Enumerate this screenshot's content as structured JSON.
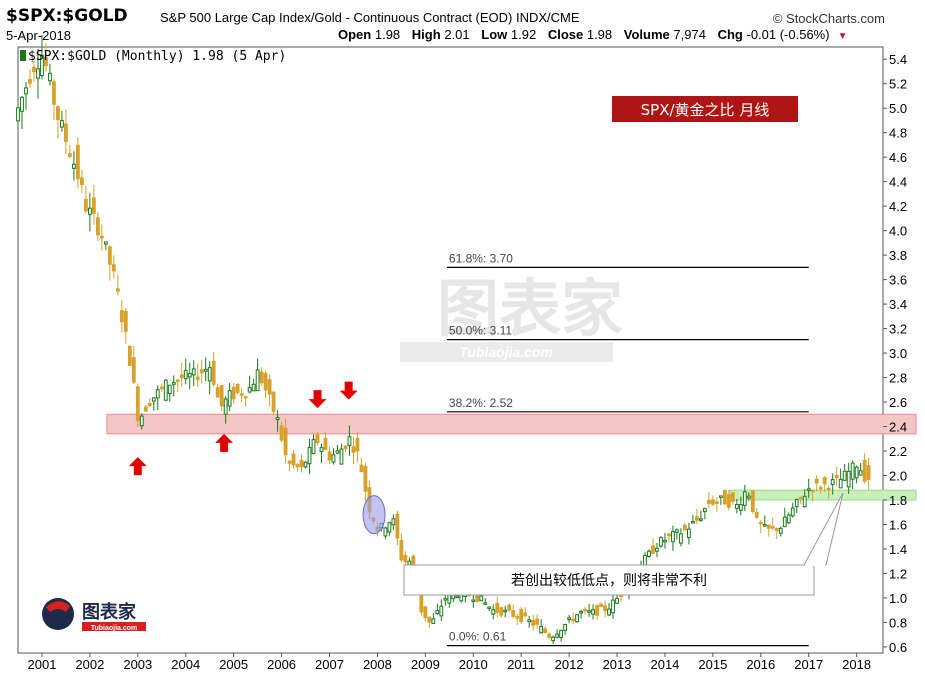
{
  "header": {
    "symbol": "$SPX:$GOLD",
    "description": "S&P 500 Large Cap Index/Gold - Continuous Contract (EOD)  INDX/CME",
    "brand": "© StockCharts.com",
    "date": "5-Apr-2018",
    "open_label": "Open",
    "open": "1.98",
    "high_label": "High",
    "high": "2.01",
    "low_label": "Low",
    "low": "1.92",
    "close_label": "Close",
    "close": "1.98",
    "volume_label": "Volume",
    "volume": "7,974",
    "chg_label": "Chg",
    "chg": "-0.01 (-0.56%)"
  },
  "colors": {
    "up": "#1a7a1a",
    "down": "#d7a12a",
    "band": "#f4c6c6",
    "band_border": "#e88",
    "support": "#c9f0b8",
    "title_bg": "#b01515",
    "arrow": "#e00000",
    "ellipse": "#9b9be8"
  },
  "chart_data": {
    "type": "candlestick",
    "legend": "$SPX:$GOLD (Monthly) 1.98 (5 Apr)",
    "title_box": "SPX/黄金之比  月线",
    "annotation": "若创出较低低点，则将非常不利",
    "watermark": "图表家",
    "watermark_sub": "Tubiaojia.com",
    "logo_text": "图表家",
    "logo_sub": "Tubiaojia.com",
    "ylim": [
      0.55,
      5.5
    ],
    "y_ticks": [
      0.6,
      0.8,
      1.0,
      1.2,
      1.4,
      1.6,
      1.8,
      2.0,
      2.2,
      2.4,
      2.6,
      2.8,
      3.0,
      3.2,
      3.4,
      3.6,
      3.8,
      4.0,
      4.2,
      4.4,
      4.6,
      4.8,
      5.0,
      5.2,
      5.4
    ],
    "y_tick_labels": [
      "0.6",
      "0.8",
      "1.0",
      "1.2",
      "1.4",
      "1.6",
      "1.8",
      "2.0",
      "2.2",
      "2.4",
      "2.6",
      "2.8",
      "3.0",
      "3.2",
      "3.4",
      "3.6",
      "3.8",
      "4.0",
      "4.2",
      "4.4",
      "4.6",
      "4.8",
      "5.0",
      "5.2",
      "5.4"
    ],
    "x_ticks": [
      2001,
      2002,
      2003,
      2004,
      2005,
      2006,
      2007,
      2008,
      2009,
      2010,
      2011,
      2012,
      2013,
      2014,
      2015,
      2016,
      2017,
      2018
    ],
    "xlim": [
      2000.5,
      2018.55
    ],
    "fib_levels": [
      {
        "label": "61.8%: 3.70",
        "value": 3.7
      },
      {
        "label": "50.0%: 3.11",
        "value": 3.11
      },
      {
        "label": "38.2%: 2.52",
        "value": 2.52
      },
      {
        "label": "0.0%: 0.61",
        "value": 0.61
      }
    ],
    "fib_x_start": 2009.45,
    "fib_x_end": 2017.0,
    "resistance_band": [
      2.34,
      2.5
    ],
    "support_band": [
      1.8,
      1.88
    ],
    "support_x_start": 2015.35,
    "arrows": [
      {
        "date": 2003.0,
        "value": 2.15,
        "direction": "up"
      },
      {
        "date": 2004.8,
        "value": 2.34,
        "direction": "up"
      },
      {
        "date": 2006.75,
        "value": 2.55,
        "direction": "down"
      },
      {
        "date": 2007.4,
        "value": 2.62,
        "direction": "down"
      }
    ],
    "ellipse": {
      "date": 2007.93,
      "value": 1.68
    },
    "anchors": [
      [
        2000.5,
        4.9
      ],
      [
        2000.9,
        5.35
      ],
      [
        2001.1,
        5.45
      ],
      [
        2001.4,
        4.95
      ],
      [
        2001.8,
        4.5
      ],
      [
        2002.0,
        4.2
      ],
      [
        2002.3,
        4.0
      ],
      [
        2002.6,
        3.6
      ],
      [
        2002.9,
        3.0
      ],
      [
        2003.1,
        2.45
      ],
      [
        2003.3,
        2.6
      ],
      [
        2003.7,
        2.75
      ],
      [
        2004.0,
        2.8
      ],
      [
        2004.3,
        2.82
      ],
      [
        2004.6,
        2.9
      ],
      [
        2004.8,
        2.55
      ],
      [
        2005.0,
        2.65
      ],
      [
        2005.4,
        2.7
      ],
      [
        2005.6,
        2.85
      ],
      [
        2005.8,
        2.65
      ],
      [
        2006.0,
        2.45
      ],
      [
        2006.2,
        2.1
      ],
      [
        2006.5,
        2.05
      ],
      [
        2006.8,
        2.3
      ],
      [
        2007.1,
        2.15
      ],
      [
        2007.3,
        2.2
      ],
      [
        2007.5,
        2.3
      ],
      [
        2007.7,
        2.15
      ],
      [
        2007.9,
        1.75
      ],
      [
        2008.1,
        1.55
      ],
      [
        2008.4,
        1.65
      ],
      [
        2008.6,
        1.3
      ],
      [
        2008.8,
        1.3
      ],
      [
        2009.0,
        0.9
      ],
      [
        2009.2,
        0.78
      ],
      [
        2009.5,
        1.0
      ],
      [
        2009.8,
        1.05
      ],
      [
        2010.2,
        1.0
      ],
      [
        2010.5,
        0.9
      ],
      [
        2010.8,
        0.88
      ],
      [
        2011.2,
        0.82
      ],
      [
        2011.5,
        0.75
      ],
      [
        2011.7,
        0.68
      ],
      [
        2011.9,
        0.75
      ],
      [
        2012.3,
        0.88
      ],
      [
        2012.6,
        0.88
      ],
      [
        2012.9,
        0.92
      ],
      [
        2013.1,
        1.0
      ],
      [
        2013.4,
        1.2
      ],
      [
        2013.7,
        1.33
      ],
      [
        2013.95,
        1.45
      ],
      [
        2014.2,
        1.5
      ],
      [
        2014.5,
        1.55
      ],
      [
        2014.8,
        1.65
      ],
      [
        2015.0,
        1.78
      ],
      [
        2015.3,
        1.8
      ],
      [
        2015.6,
        1.75
      ],
      [
        2015.8,
        1.9
      ],
      [
        2016.0,
        1.62
      ],
      [
        2016.2,
        1.55
      ],
      [
        2016.5,
        1.58
      ],
      [
        2016.8,
        1.75
      ],
      [
        2017.1,
        1.9
      ],
      [
        2017.4,
        1.92
      ],
      [
        2017.7,
        1.95
      ],
      [
        2017.9,
        2.02
      ],
      [
        2018.1,
        2.1
      ],
      [
        2018.27,
        1.98
      ]
    ]
  }
}
